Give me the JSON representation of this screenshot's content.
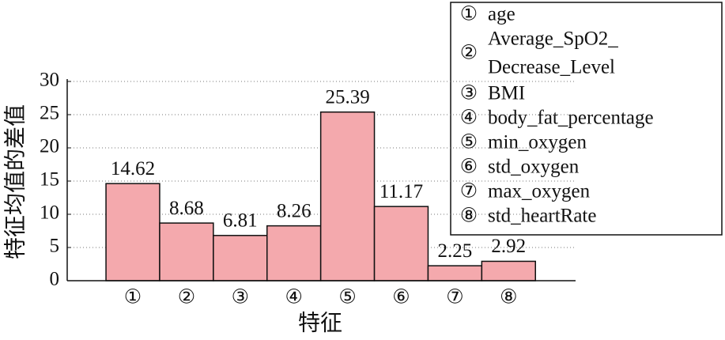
{
  "chart_data": {
    "type": "bar",
    "x_label": "特征",
    "y_label": "特征均值的差值",
    "categories": [
      "①",
      "②",
      "③",
      "④",
      "⑤",
      "⑥",
      "⑦",
      "⑧"
    ],
    "values": [
      14.62,
      8.68,
      6.81,
      8.26,
      25.39,
      11.17,
      2.25,
      2.92
    ],
    "color": "#f4a9ad",
    "ylim": [
      0,
      30
    ],
    "yticks": [
      0,
      5,
      10,
      15,
      20,
      25,
      30
    ],
    "grid": true,
    "legend": [
      {
        "marker": "①",
        "lines": [
          "age"
        ]
      },
      {
        "marker": "②",
        "lines": [
          "Average_SpO2_",
          "Decrease_Level"
        ]
      },
      {
        "marker": "③",
        "lines": [
          "BMI"
        ]
      },
      {
        "marker": "④",
        "lines": [
          "body_fat_percentage"
        ]
      },
      {
        "marker": "⑤",
        "lines": [
          "min_oxygen"
        ]
      },
      {
        "marker": "⑥",
        "lines": [
          "std_oxygen"
        ]
      },
      {
        "marker": "⑦",
        "lines": [
          "max_oxygen"
        ]
      },
      {
        "marker": "⑧",
        "lines": [
          "std_heartRate"
        ]
      }
    ]
  }
}
